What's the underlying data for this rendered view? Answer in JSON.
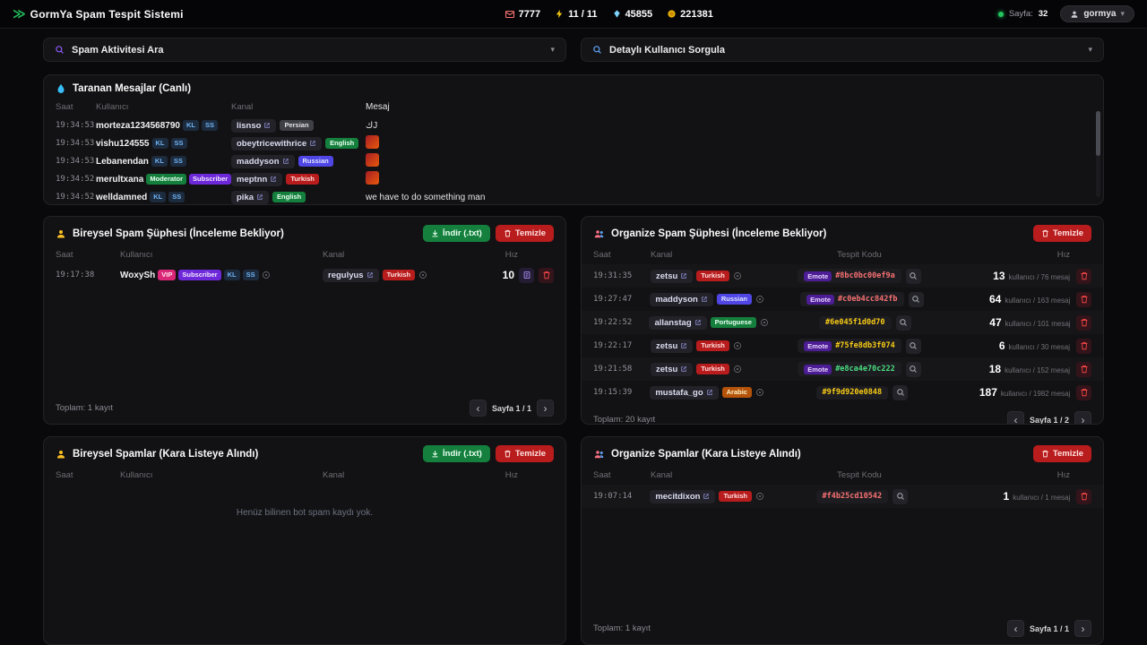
{
  "navbar": {
    "title": "GormYa Spam Tespit Sistemi",
    "stats": {
      "messages": "7777",
      "health": "11 / 11",
      "gems": "45855",
      "coins": "221381"
    },
    "page_label": "Sayfa:",
    "page_value": "32",
    "user_menu": "gormya"
  },
  "accordions": {
    "left": "Spam Aktivitesi Ara",
    "right": "Detaylı Kullanıcı Sorgula"
  },
  "badge_styles": {
    "KL": {
      "bg": "#1d2b3f",
      "fg": "#6fb3f2"
    },
    "SS": {
      "bg": "#1d2b3f",
      "fg": "#6fb3f2"
    },
    "Moderator": {
      "bg": "#15803d",
      "fg": "#eafff2"
    },
    "Subscriber": {
      "bg": "#6d28d9",
      "fg": "#f3e8ff"
    },
    "VIP": {
      "bg": "#db2777",
      "fg": "#ffe4ef"
    }
  },
  "lang_styles": {
    "Persian": {
      "bg": "#3f3f46",
      "fg": "#e4e4e7"
    },
    "English": {
      "bg": "#15803d",
      "fg": "#eafff2"
    },
    "Russian": {
      "bg": "#4f46e5",
      "fg": "#e0e7ff"
    },
    "Turkish": {
      "bg": "#b91c1c",
      "fg": "#fee2e2"
    },
    "Portuguese": {
      "bg": "#15803d",
      "fg": "#eafff2"
    },
    "Arabic": {
      "bg": "#b45309",
      "fg": "#fef3c7"
    }
  },
  "live_panel": {
    "title": "Taranan Mesajlar (Canlı)",
    "columns": [
      "Saat",
      "Kullanıcı",
      "Kanal",
      "Mesaj"
    ],
    "rows": [
      {
        "time": "19:34:53",
        "user": "morteza1234568790",
        "badges": [
          "KL",
          "SS"
        ],
        "channel": "lisnso",
        "lang": "Persian",
        "message_type": "text",
        "message": "كJ"
      },
      {
        "time": "19:34:53",
        "user": "vishu124555",
        "badges": [
          "KL",
          "SS"
        ],
        "channel": "obeytricewithrice",
        "lang": "English",
        "message_type": "emote",
        "message": ""
      },
      {
        "time": "19:34:53",
        "user": "Lebanendan",
        "badges": [
          "KL",
          "SS"
        ],
        "channel": "maddyson",
        "lang": "Russian",
        "message_type": "emote",
        "message": ""
      },
      {
        "time": "19:34:52",
        "user": "merultxana",
        "badges": [
          "Moderator",
          "Subscriber",
          "KL",
          "SS"
        ],
        "channel": "meptnn",
        "lang": "Turkish",
        "message_type": "emote",
        "message": ""
      },
      {
        "time": "19:34:52",
        "user": "welldamned",
        "badges": [
          "KL",
          "SS"
        ],
        "channel": "pika",
        "lang": "English",
        "message_type": "text",
        "message": "we have to do something man"
      }
    ]
  },
  "individual_suspects": {
    "title": "Bireysel Spam Şüphesi (İnceleme Bekliyor)",
    "download_label": "İndir (.txt)",
    "clear_label": "Temizle",
    "columns": [
      "Saat",
      "Kullanıcı",
      "Kanal",
      "Hız"
    ],
    "rows": [
      {
        "time": "19:17:38",
        "user": "WoxySh",
        "badges": [
          "VIP",
          "Subscriber",
          "KL",
          "SS"
        ],
        "channel": "regulyus",
        "lang": "Turkish",
        "speed": "10"
      }
    ],
    "total": "Toplam: 1 kayıt",
    "page": "Sayfa 1 / 1"
  },
  "organized_suspects": {
    "title": "Organize Spam Şüphesi (İnceleme Bekliyor)",
    "clear_label": "Temizle",
    "columns": [
      "Saat",
      "Kanal",
      "Tespit Kodu",
      "Hız"
    ],
    "rows": [
      {
        "time": "19:31:35",
        "channel": "zetsu",
        "lang": "Turkish",
        "emote": true,
        "code": "#8bc0bc00ef9a",
        "code_color": "#f87171",
        "users": "13",
        "detail": "kullanıcı / 76 mesaj"
      },
      {
        "time": "19:27:47",
        "channel": "maddyson",
        "lang": "Russian",
        "emote": true,
        "code": "#c0eb4cc842fb",
        "code_color": "#f87171",
        "users": "64",
        "detail": "kullanıcı / 163 mesaj"
      },
      {
        "time": "19:22:52",
        "channel": "allanstag",
        "lang": "Portuguese",
        "emote": false,
        "code": "#6e045f1d0d70",
        "code_color": "#facc15",
        "users": "47",
        "detail": "kullanıcı / 101 mesaj"
      },
      {
        "time": "19:22:17",
        "channel": "zetsu",
        "lang": "Turkish",
        "emote": true,
        "code": "#75fe8db3f074",
        "code_color": "#facc15",
        "users": "6",
        "detail": "kullanıcı / 30 mesaj"
      },
      {
        "time": "19:21:58",
        "channel": "zetsu",
        "lang": "Turkish",
        "emote": true,
        "code": "#e8ca4e70c222",
        "code_color": "#4ade80",
        "users": "18",
        "detail": "kullanıcı / 152 mesaj"
      },
      {
        "time": "19:15:39",
        "channel": "mustafa_go",
        "lang": "Arabic",
        "emote": false,
        "code": "#9f9d920e0848",
        "code_color": "#facc15",
        "users": "187",
        "detail": "kullanıcı / 1982 mesaj"
      }
    ],
    "total": "Toplam: 20 kayıt",
    "page": "Sayfa 1 / 2"
  },
  "individual_blacklist": {
    "title": "Bireysel Spamlar (Kara Listeye Alındı)",
    "download_label": "İndir (.txt)",
    "clear_label": "Temizle",
    "columns": [
      "Saat",
      "Kullanıcı",
      "Kanal",
      "Hız"
    ],
    "rows": [],
    "empty_message": "Henüz bilinen bot spam kaydı yok."
  },
  "organized_blacklist": {
    "title": "Organize Spamlar (Kara Listeye Alındı)",
    "clear_label": "Temizle",
    "columns": [
      "Saat",
      "Kanal",
      "Tespit Kodu",
      "Hız"
    ],
    "rows": [
      {
        "time": "19:07:14",
        "channel": "mecitdixon",
        "lang": "Turkish",
        "emote": false,
        "code": "#f4b25cd10542",
        "code_color": "#f87171",
        "users": "1",
        "detail": "kullanıcı / 1 mesaj"
      }
    ],
    "total": "Toplam: 1 kayıt",
    "page": "Sayfa 1 / 1"
  }
}
